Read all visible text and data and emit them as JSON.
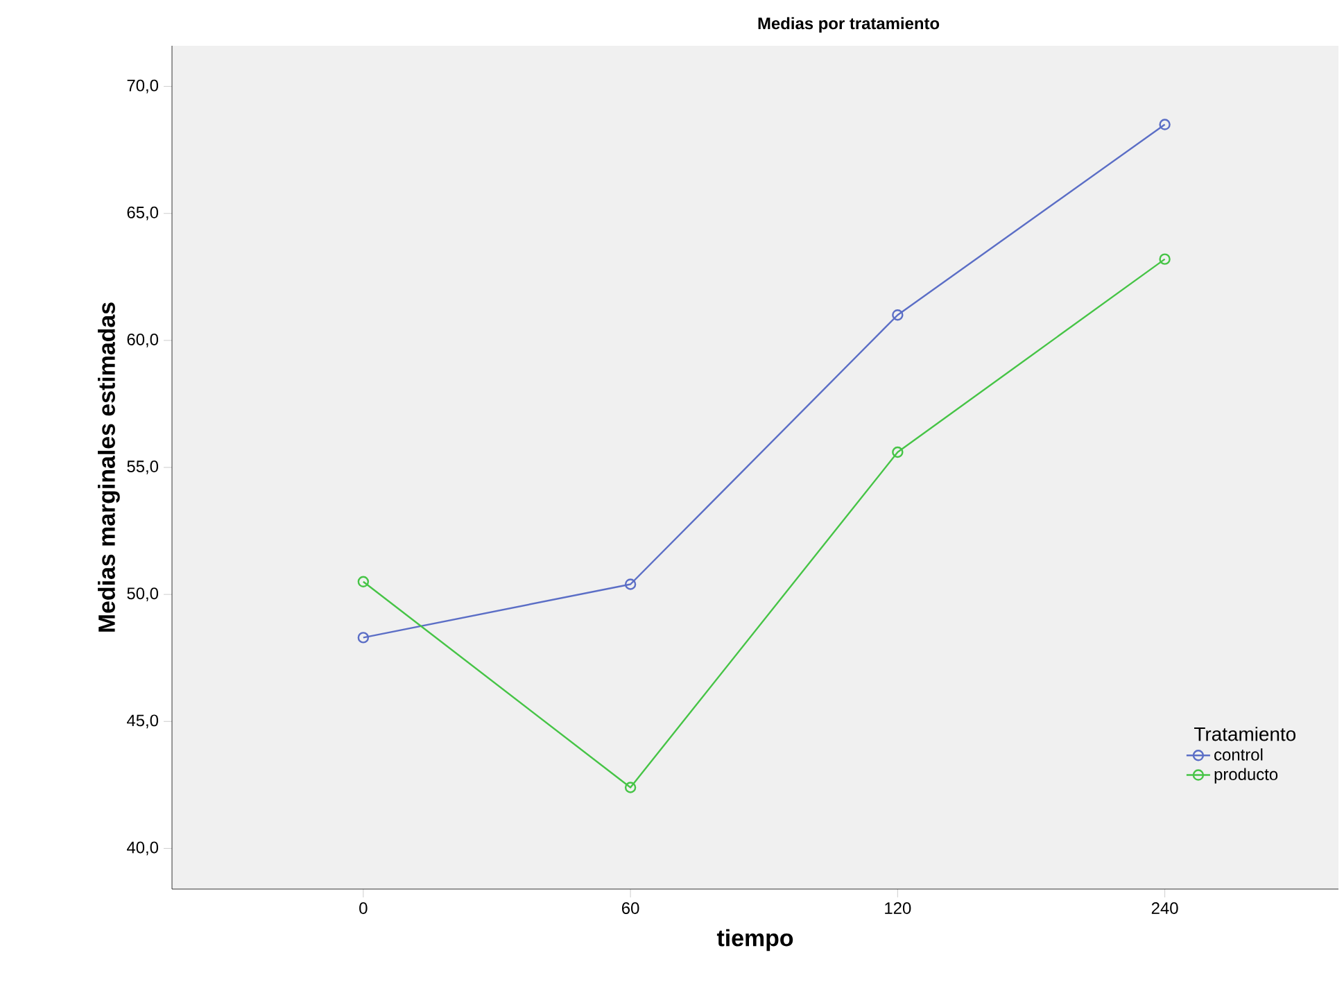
{
  "chart_data": {
    "type": "line",
    "title": "Medias por tratamiento",
    "xlabel": "tiempo",
    "ylabel": "Medias marginales estimadas",
    "legend_title": "Tratamiento",
    "categories": [
      "0",
      "60",
      "120",
      "240"
    ],
    "series": [
      {
        "name": "control",
        "color": "#5b6ec6",
        "values": [
          48.3,
          50.4,
          61.0,
          68.5
        ]
      },
      {
        "name": "producto",
        "color": "#46c446",
        "values": [
          50.5,
          42.4,
          55.6,
          63.2
        ]
      }
    ],
    "ylim": [
      38.4,
      71.6
    ],
    "yticks": [
      {
        "value": 40,
        "label": "40,0"
      },
      {
        "value": 45,
        "label": "45,0"
      },
      {
        "value": 50,
        "label": "50,0"
      },
      {
        "value": 55,
        "label": "55,0"
      },
      {
        "value": 60,
        "label": "60,0"
      },
      {
        "value": 65,
        "label": "65,0"
      },
      {
        "value": 70,
        "label": "70,0"
      }
    ],
    "legend": "bottom right",
    "marker": "circle",
    "line_style": "solid"
  }
}
